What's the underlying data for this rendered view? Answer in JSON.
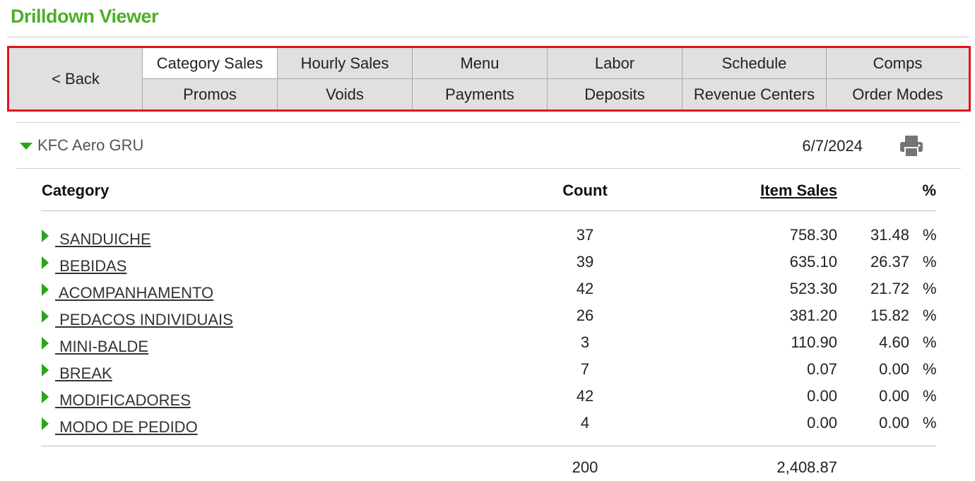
{
  "app": {
    "title": "Drilldown Viewer"
  },
  "nav": {
    "back_label": "< Back",
    "row1": [
      "Category Sales",
      "Hourly Sales",
      "Menu",
      "Labor",
      "Schedule",
      "Comps"
    ],
    "row2": [
      "Promos",
      "Voids",
      "Payments",
      "Deposits",
      "Revenue Centers",
      "Order Modes"
    ],
    "active": "Category Sales"
  },
  "store": {
    "name": "KFC Aero GRU",
    "date": "6/7/2024"
  },
  "table": {
    "headers": {
      "category": "Category",
      "count": "Count",
      "item_sales": "Item Sales",
      "pct": "%"
    },
    "rows": [
      {
        "category": " SANDUICHE",
        "count": "37",
        "item_sales": "758.30",
        "pct": "31.48",
        "pct_sign": "%"
      },
      {
        "category": " BEBIDAS",
        "count": "39",
        "item_sales": "635.10",
        "pct": "26.37",
        "pct_sign": "%"
      },
      {
        "category": " ACOMPANHAMENTO",
        "count": "42",
        "item_sales": "523.30",
        "pct": "21.72",
        "pct_sign": "%"
      },
      {
        "category": " PEDACOS INDIVIDUAIS",
        "count": "26",
        "item_sales": "381.20",
        "pct": "15.82",
        "pct_sign": "%"
      },
      {
        "category": " MINI-BALDE",
        "count": "3",
        "item_sales": "110.90",
        "pct": "4.60",
        "pct_sign": "%"
      },
      {
        "category": " BREAK",
        "count": "7",
        "item_sales": "0.07",
        "pct": "0.00",
        "pct_sign": "%"
      },
      {
        "category": " MODIFICADORES",
        "count": "42",
        "item_sales": "0.00",
        "pct": "0.00",
        "pct_sign": "%"
      },
      {
        "category": " MODO DE PEDIDO",
        "count": "4",
        "item_sales": "0.00",
        "pct": "0.00",
        "pct_sign": "%"
      }
    ],
    "totals": {
      "count": "200",
      "item_sales": "2,408.87"
    }
  },
  "colors": {
    "brand_green": "#4caf2a",
    "caret_green": "#2aa31c",
    "nav_border_red": "#e0141b",
    "nav_bg": "#e0e0e0"
  },
  "icons": {
    "store_caret": "caret-down-icon",
    "row_caret": "caret-right-icon",
    "print": "print-icon"
  }
}
